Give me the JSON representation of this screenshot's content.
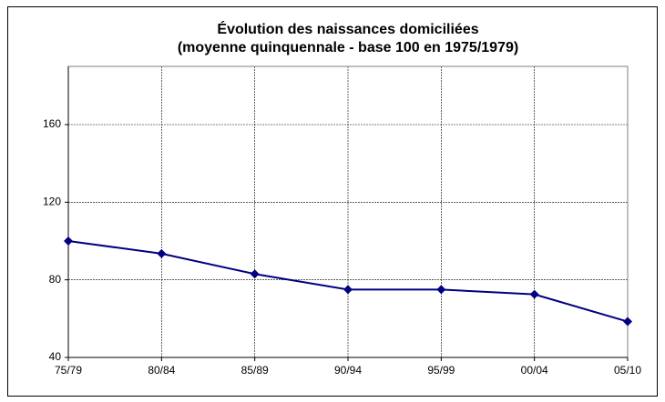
{
  "chart_data": {
    "type": "line",
    "title": [
      "Évolution des naissances domiciliées",
      "(moyenne quinquennale - base 100 en 1975/1979)"
    ],
    "categories": [
      "75/79",
      "80/84",
      "85/89",
      "90/94",
      "95/99",
      "00/04",
      "05/10"
    ],
    "series": [
      {
        "name": "Naissances domiciliées",
        "color": "#000080",
        "values": [
          100,
          93.5,
          83,
          75,
          75,
          72.5,
          58.5
        ]
      }
    ],
    "ylim": [
      40,
      190
    ],
    "yticks": [
      40,
      80,
      120,
      160
    ],
    "grid": true,
    "legend": false
  }
}
